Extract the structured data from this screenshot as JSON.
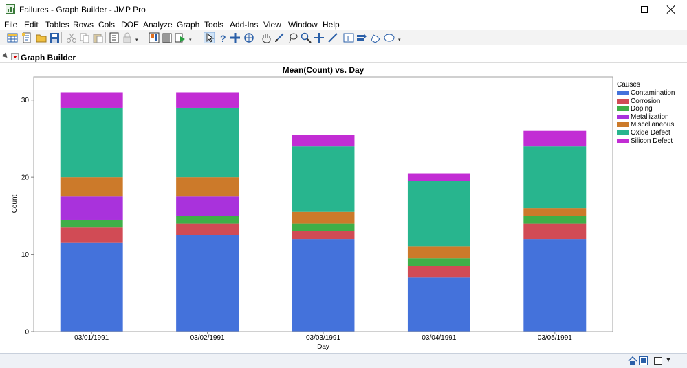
{
  "window": {
    "title": "Failures - Graph Builder - JMP Pro"
  },
  "menu": [
    "File",
    "Edit",
    "Tables",
    "Rows",
    "Cols",
    "DOE",
    "Analyze",
    "Graph",
    "Tools",
    "Add-Ins",
    "View",
    "Window",
    "Help"
  ],
  "toolbar_icons": [
    "new-data-table-icon",
    "new-script-icon",
    "open-icon",
    "save-icon",
    "cut-icon",
    "copy-icon",
    "paste-icon",
    "journal-icon",
    "lock-icon",
    "layout-icon",
    "data-view-icon",
    "run-script-icon",
    "arrow-tool-icon",
    "help-tool-icon",
    "selection-tool-icon",
    "scroller-tool-icon",
    "grabber-tool-icon",
    "brush-tool-icon",
    "lasso-tool-icon",
    "magnifier-tool-icon",
    "crosshair-tool-icon",
    "line-tool-icon",
    "annotate-tool-icon",
    "polygon-tool-icon",
    "simple-shape-tool-icon",
    "ellipse-tool-icon"
  ],
  "report": {
    "title": "Graph Builder"
  },
  "colors": {
    "Contamination": "#4472DB",
    "Corrosion": "#D14B55",
    "Doping": "#3FAF48",
    "Metallization": "#A932DC",
    "Miscellaneous": "#CC7A2A",
    "Oxide Defect": "#28B58E",
    "Silicon Defect": "#C22DD4"
  },
  "chart_data": {
    "type": "bar",
    "stacked": true,
    "title": "Mean(Count) vs. Day",
    "xlabel": "Day",
    "ylabel": "Count",
    "ylim": [
      0,
      33
    ],
    "yticks": [
      0,
      10,
      20,
      30
    ],
    "legend_title": "Causes",
    "legend_position": "right",
    "categories": [
      "03/01/1991",
      "03/02/1991",
      "03/03/1991",
      "03/04/1991",
      "03/05/1991"
    ],
    "series": [
      {
        "name": "Contamination",
        "values": [
          11.5,
          12.5,
          12,
          7,
          12
        ]
      },
      {
        "name": "Corrosion",
        "values": [
          2,
          1.5,
          1,
          1.5,
          2
        ]
      },
      {
        "name": "Doping",
        "values": [
          1,
          1,
          1,
          1,
          1
        ]
      },
      {
        "name": "Metallization",
        "values": [
          3,
          2.5,
          0,
          0,
          0
        ]
      },
      {
        "name": "Miscellaneous",
        "values": [
          2.5,
          2.5,
          1.5,
          1.5,
          1
        ]
      },
      {
        "name": "Oxide Defect",
        "values": [
          9,
          9,
          8.5,
          8.5,
          8
        ]
      },
      {
        "name": "Silicon Defect",
        "values": [
          2,
          2,
          1.5,
          1,
          2
        ]
      }
    ]
  }
}
